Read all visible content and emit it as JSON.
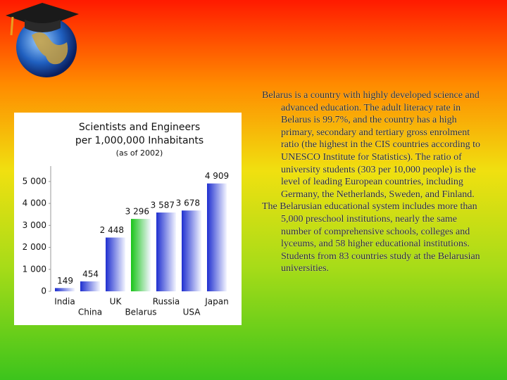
{
  "chart_data": {
    "type": "bar",
    "title": "Scientists and Engineers",
    "subtitle": "per 1,000,000 Inhabitants",
    "note": "(as of 2002)",
    "categories": [
      "India",
      "China",
      "UK",
      "Belarus",
      "Russia",
      "USA",
      "Japan"
    ],
    "values": [
      149,
      454,
      2448,
      3296,
      3587,
      3678,
      4909
    ],
    "value_labels": [
      "149",
      "454",
      "2 448",
      "3 296",
      "3 587",
      "3 678",
      "4 909"
    ],
    "colors": [
      "#1f2fd0",
      "#1f2fd0",
      "#1f2fd0",
      "#18c418",
      "#1f2fd0",
      "#1f2fd0",
      "#1f2fd0"
    ],
    "ylim": [
      0,
      5700
    ],
    "yticks": [
      0,
      {
        "value": 1000,
        "label": "1 000"
      },
      {
        "value": 2000,
        "label": "2 000"
      },
      {
        "value": 3000,
        "label": "3 000"
      },
      {
        "value": 4000,
        "label": "4 000"
      },
      {
        "value": 5000,
        "label": "5 000"
      }
    ]
  },
  "text": {
    "paragraphs": [
      "Belarus is a country with highly developed science and advanced education. The adult literacy rate in Belarus is 99.7%, and the country has a high primary, secondary and tertiary gross enrolment ratio (the highest in the CIS countries according to UNESCO Institute for Statistics). The ratio of university students (303 per 10,000 people) is the level of leading European countries, including Germany, the Netherlands, Sweden, and Finland.",
      "The Belarusian educational system includes more than 5,000 preschool institutions, nearly the same number of comprehensive schools, colleges and lyceums, and 58 higher educational institutions. Students from 83 countries study at the Belarusian universities."
    ]
  }
}
